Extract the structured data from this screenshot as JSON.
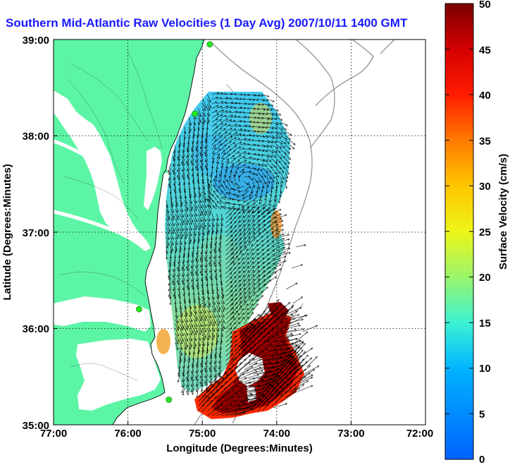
{
  "title": "Southern Mid-Atlantic Raw Velocities (1 Day Avg) 2007/10/11 1400 GMT",
  "map": {
    "lon_range": [
      -77,
      -72
    ],
    "lat_range": [
      35,
      39
    ],
    "x_label": "Longitude (Degrees:Minutes)",
    "y_label": "Latitude (Degrees:Minutes)",
    "x_ticks": [
      "77:00",
      "76:00",
      "75:00",
      "74:00",
      "73:00",
      "72:00"
    ],
    "y_ticks": [
      "39:00",
      "38:00",
      "37:00",
      "36:00",
      "35:00"
    ],
    "grid": "dotted",
    "land_color": "#5cf5a6",
    "bathymetry_color": "#9a9a9a"
  },
  "colorbar": {
    "label": "Surface Velocity (cm/s)",
    "min": 0,
    "max": 50,
    "ticks": [
      "0",
      "5",
      "10",
      "15",
      "20",
      "25",
      "30",
      "35",
      "40",
      "45",
      "50"
    ]
  },
  "stations": [
    {
      "lon": -74.9,
      "lat": 38.95
    },
    {
      "lon": -75.1,
      "lat": 38.23
    },
    {
      "lon": -75.85,
      "lat": 36.2
    },
    {
      "lon": -75.45,
      "lat": 35.26
    }
  ]
}
